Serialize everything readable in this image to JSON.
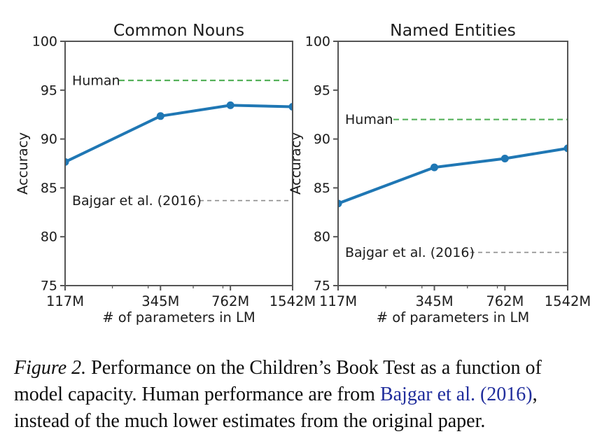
{
  "figure": {
    "name": "Figure 2",
    "caption": {
      "lines": [
        {
          "segments": [
            {
              "text": "Figure 2.",
              "style": "italic"
            },
            {
              "text": " Performance on the Children’s Book Test as a function of",
              "style": "normal"
            }
          ]
        },
        {
          "segments": [
            {
              "text": "model capacity. Human performance are from ",
              "style": "normal"
            },
            {
              "text": "Bajgar et al. (2016)",
              "style": "link"
            },
            {
              "text": ",",
              "style": "normal"
            }
          ]
        },
        {
          "segments": [
            {
              "text": "instead of the much lower estimates from the original paper.",
              "style": "normal"
            }
          ]
        }
      ]
    },
    "colors": {
      "series_blue": "#1f77b4",
      "human_green": "#57b25c",
      "baseline_gray": "#8c8c8c",
      "axis": "#555555",
      "text": "#1c1c1c",
      "link_blue": "#202d9c"
    }
  },
  "chart_data": [
    {
      "type": "line",
      "title": "Common Nouns",
      "xlabel": "# of parameters in LM",
      "ylabel": "Accuracy",
      "x_scale": "log",
      "x": [
        117,
        345,
        762,
        1542
      ],
      "x_unit": "millions",
      "x_tick_labels": [
        "117M",
        "345M",
        "762M",
        "1542M"
      ],
      "x_minor_ticks": [
        200,
        300,
        500,
        700
      ],
      "ylim": [
        75,
        100
      ],
      "yticks": [
        75,
        80,
        85,
        90,
        95,
        100
      ],
      "grid": false,
      "legend": "none",
      "series": [
        {
          "values": [
            87.65,
            92.35,
            93.45,
            93.3
          ],
          "color_key": "series_blue",
          "marker": "circle"
        }
      ],
      "reference_lines": [
        {
          "label": "Human",
          "value": 96.0,
          "style": "dashed",
          "color_key": "human_green"
        },
        {
          "label": "Bajgar et al. (2016)",
          "value": 83.7,
          "style": "dashed",
          "color_key": "baseline_gray"
        }
      ]
    },
    {
      "type": "line",
      "title": "Named Entities",
      "xlabel": "# of parameters in LM",
      "ylabel": "Accuracy",
      "x_scale": "log",
      "x": [
        117,
        345,
        762,
        1542
      ],
      "x_unit": "millions",
      "x_tick_labels": [
        "117M",
        "345M",
        "762M",
        "1542M"
      ],
      "x_minor_ticks": [
        200,
        300,
        500,
        700
      ],
      "ylim": [
        75,
        100
      ],
      "yticks": [
        75,
        80,
        85,
        90,
        95,
        100
      ],
      "grid": false,
      "legend": "none",
      "series": [
        {
          "values": [
            83.4,
            87.1,
            88.0,
            89.05
          ],
          "color_key": "series_blue",
          "marker": "circle"
        }
      ],
      "reference_lines": [
        {
          "label": "Human",
          "value": 92.0,
          "style": "dashed",
          "color_key": "human_green"
        },
        {
          "label": "Bajgar et al. (2016)",
          "value": 78.4,
          "style": "dashed",
          "color_key": "baseline_gray"
        }
      ]
    }
  ]
}
